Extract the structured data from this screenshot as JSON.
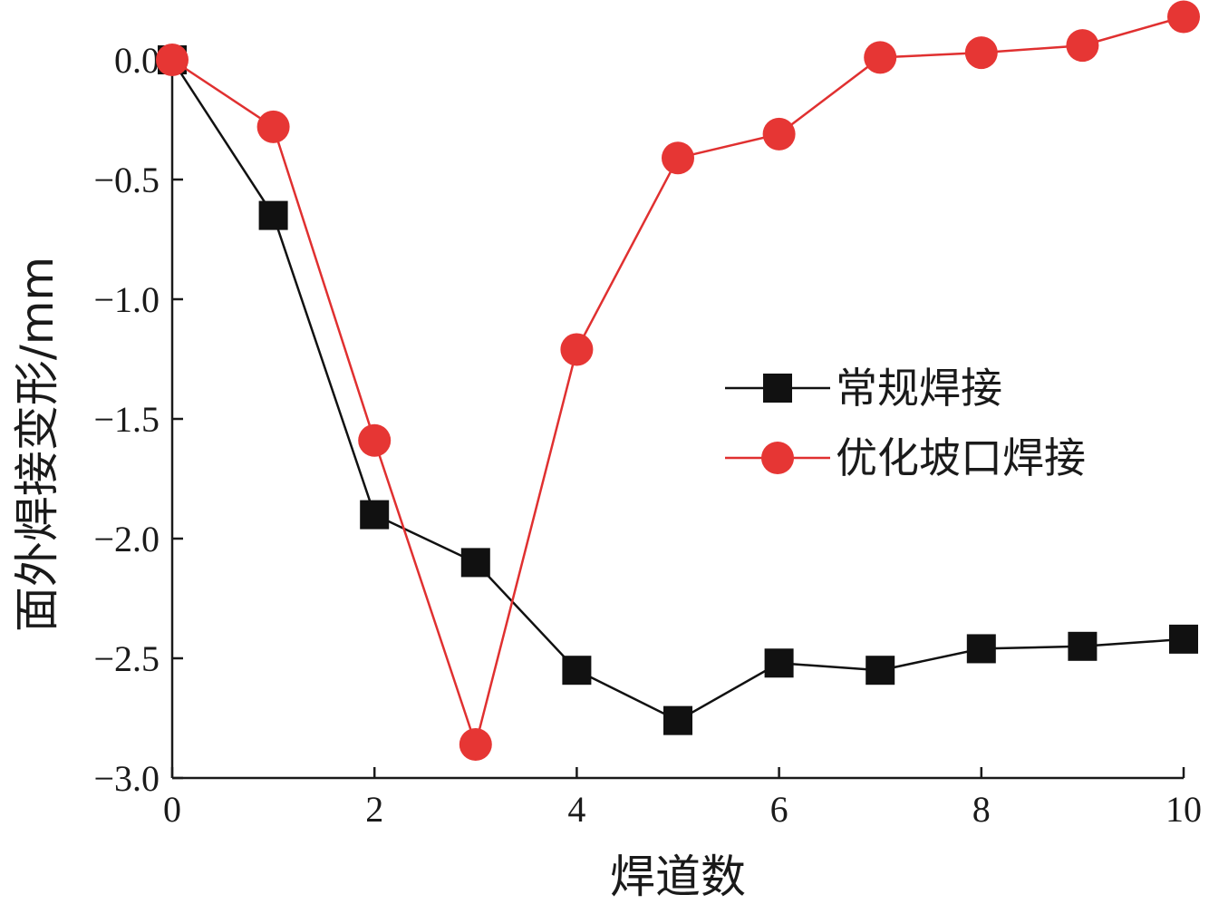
{
  "chart_data": {
    "type": "line",
    "xlabel": "焊道数",
    "ylabel": "面外焊接变形/mm",
    "xlim": [
      0,
      10
    ],
    "ylim": [
      -3.0,
      0.0
    ],
    "xticks": [
      0,
      2,
      4,
      6,
      8,
      10
    ],
    "xtick_labels": [
      "0",
      "2",
      "4",
      "6",
      "8",
      "10"
    ],
    "yticks": [
      0.0,
      -0.5,
      -1.0,
      -1.5,
      -2.0,
      -2.5,
      -3.0
    ],
    "ytick_labels": [
      "0.0",
      "−0.5",
      "−1.0",
      "−1.5",
      "−2.0",
      "−2.5",
      "−3.0"
    ],
    "grid": false,
    "legend_position": "right",
    "x": [
      0,
      1,
      2,
      3,
      4,
      5,
      6,
      7,
      8,
      9,
      10
    ],
    "series": [
      {
        "name": "常规焊接",
        "marker": "square",
        "line_color": "#111111",
        "marker_color": "#111111",
        "values": [
          0.0,
          -0.65,
          -1.9,
          -2.1,
          -2.55,
          -2.76,
          -2.52,
          -2.55,
          -2.46,
          -2.45,
          -2.42
        ]
      },
      {
        "name": "优化坡口焊接",
        "marker": "circle",
        "line_color": "#e03030",
        "marker_color": "#e63634",
        "values": [
          0.0,
          -0.28,
          -1.59,
          -2.86,
          -1.21,
          -0.41,
          -0.31,
          0.01,
          0.03,
          0.06,
          0.18
        ]
      }
    ]
  }
}
